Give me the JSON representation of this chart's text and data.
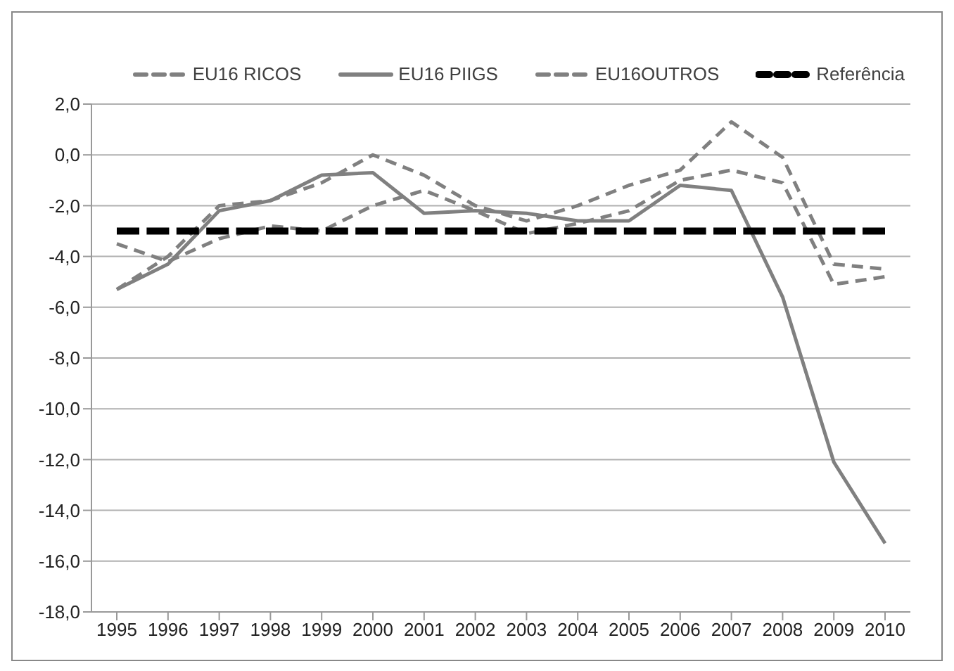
{
  "chart_data": {
    "type": "line",
    "categories": [
      "1995",
      "1996",
      "1997",
      "1998",
      "1999",
      "2000",
      "2001",
      "2002",
      "2003",
      "2004",
      "2005",
      "2006",
      "2007",
      "2008",
      "2009",
      "2010"
    ],
    "series": [
      {
        "name": "EU16 RICOS",
        "color": "#808080",
        "line_style": "dashed",
        "values": [
          -5.3,
          -4.0,
          -2.0,
          -1.8,
          -1.1,
          0.0,
          -0.8,
          -2.0,
          -2.6,
          -2.0,
          -1.2,
          -0.6,
          1.3,
          -0.1,
          -4.3,
          -4.5
        ]
      },
      {
        "name": "EU16 PIIGS",
        "color": "#808080",
        "line_style": "solid",
        "values": [
          -5.3,
          -4.3,
          -2.2,
          -1.8,
          -0.8,
          -0.7,
          -2.3,
          -2.2,
          -2.3,
          -2.6,
          -2.6,
          -1.2,
          -1.4,
          -5.6,
          -12.1,
          -15.3
        ]
      },
      {
        "name": "EU16OUTROS",
        "color": "#808080",
        "line_style": "dashed",
        "values": [
          -3.5,
          -4.2,
          -3.3,
          -2.8,
          -3.0,
          -2.0,
          -1.4,
          -2.2,
          -3.1,
          -2.7,
          -2.2,
          -1.0,
          -0.6,
          -1.1,
          -5.1,
          -4.8
        ]
      },
      {
        "name": "Referência",
        "color": "#000000",
        "line_style": "dashed",
        "values": [
          -3,
          -3,
          -3,
          -3,
          -3,
          -3,
          -3,
          -3,
          -3,
          -3,
          -3,
          -3,
          -3,
          -3,
          -3,
          -3
        ]
      }
    ],
    "ylim": [
      -18,
      2
    ],
    "yticks": [
      {
        "value": 2,
        "label": "2,0"
      },
      {
        "value": 0,
        "label": "0,0"
      },
      {
        "value": -2,
        "label": "-2,0"
      },
      {
        "value": -4,
        "label": "-4,0"
      },
      {
        "value": -6,
        "label": "-6,0"
      },
      {
        "value": -8,
        "label": "-8,0"
      },
      {
        "value": -10,
        "label": "-10,0"
      },
      {
        "value": -12,
        "label": "-12,0"
      },
      {
        "value": -14,
        "label": "-14,0"
      },
      {
        "value": -16,
        "label": "-16,0"
      },
      {
        "value": -18,
        "label": "-18,0"
      }
    ],
    "grid": "y",
    "legend": "top",
    "marker": "none"
  }
}
